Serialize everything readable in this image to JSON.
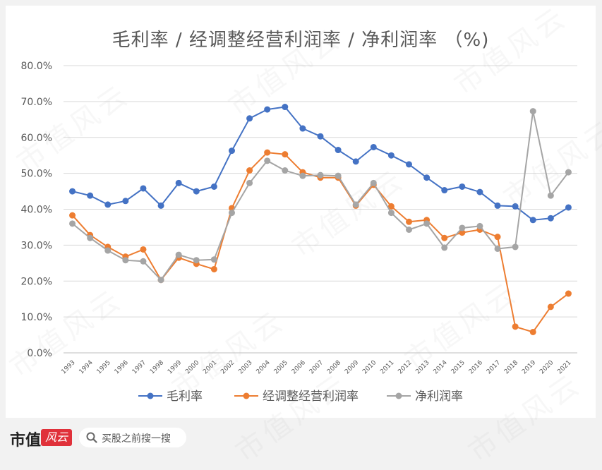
{
  "chart_data": {
    "type": "line",
    "title": "毛利率 / 经调整经营利润率 / 净利润率 （%)",
    "x": [
      "1993",
      "1994",
      "1995",
      "1996",
      "1997",
      "1998",
      "1999",
      "2000",
      "2001",
      "2002",
      "2003",
      "2004",
      "2005",
      "2006",
      "2007",
      "2008",
      "2009",
      "2010",
      "2011",
      "2012",
      "2013",
      "2014",
      "2015",
      "2016",
      "2017",
      "2018",
      "2019",
      "2020",
      "2021"
    ],
    "ylim": [
      0,
      80
    ],
    "yticks": [
      "0.0%",
      "10.0%",
      "20.0%",
      "30.0%",
      "40.0%",
      "50.0%",
      "60.0%",
      "70.0%",
      "80.0%"
    ],
    "grid": true,
    "legend_position": "bottom",
    "series": [
      {
        "name": "毛利率",
        "color": "#4472c4",
        "values": [
          45.0,
          43.8,
          41.3,
          42.3,
          45.8,
          41.0,
          47.3,
          45.0,
          46.3,
          56.3,
          65.3,
          67.8,
          68.5,
          62.5,
          60.3,
          56.5,
          53.3,
          57.3,
          55.0,
          52.5,
          48.8,
          45.3,
          46.3,
          44.8,
          41.0,
          40.8,
          37.0,
          37.5,
          40.5
        ]
      },
      {
        "name": "经调整经营利润率",
        "color": "#ed7d31",
        "values": [
          38.3,
          32.8,
          29.5,
          26.8,
          28.8,
          20.3,
          26.5,
          24.8,
          23.3,
          40.3,
          50.8,
          55.8,
          55.3,
          50.3,
          48.8,
          48.8,
          41.0,
          46.8,
          40.8,
          36.5,
          37.0,
          32.0,
          33.5,
          34.3,
          32.3,
          7.3,
          5.8,
          12.8,
          16.5
        ]
      },
      {
        "name": "净利润率",
        "color": "#a5a5a5",
        "values": [
          36.0,
          32.0,
          28.5,
          25.8,
          25.5,
          20.3,
          27.3,
          25.8,
          26.0,
          39.0,
          47.3,
          53.5,
          50.8,
          49.3,
          49.5,
          49.3,
          41.3,
          47.3,
          39.0,
          34.3,
          36.0,
          29.3,
          34.8,
          35.3,
          29.0,
          29.5,
          67.3,
          43.8,
          50.3
        ]
      }
    ]
  },
  "watermark_text": "市值风云",
  "footer": {
    "brand": "市值",
    "logo_text": "风云",
    "search_placeholder": "买股之前搜一搜",
    "search_icon": "search-icon"
  }
}
